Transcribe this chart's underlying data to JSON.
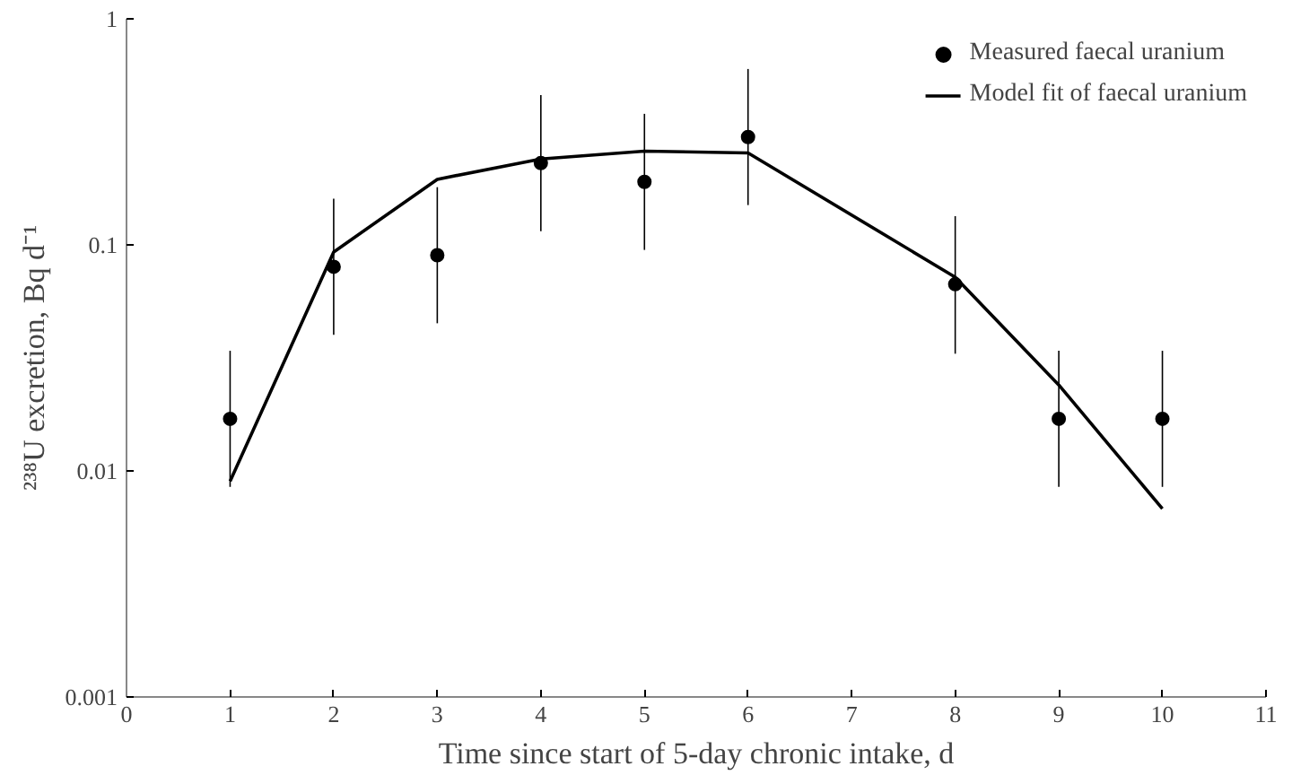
{
  "chart_data": {
    "type": "scatter",
    "xlabel": "Time since start of 5-day chronic intake, d",
    "ylabel": "²³⁸U excretion, Bq d⁻¹",
    "log": "y",
    "xlim": [
      0,
      11
    ],
    "ylim": [
      0.001,
      1
    ],
    "xticks": [
      0,
      1,
      2,
      3,
      4,
      5,
      6,
      7,
      8,
      9,
      10,
      11
    ],
    "yticks": [
      0.001,
      0.01,
      0.1,
      1
    ],
    "grid": false,
    "legend": "top right",
    "series": [
      {
        "name": "Measured faecal uranium",
        "marker": "circle",
        "color": "#000000",
        "x": [
          1,
          2,
          3,
          4,
          5,
          6,
          8,
          9,
          10
        ],
        "values": [
          0.017,
          0.08,
          0.09,
          0.23,
          0.19,
          0.3,
          0.067,
          0.017,
          0.017
        ],
        "errors": [
          [
            0.0085,
            0.034
          ],
          [
            0.04,
            0.16
          ],
          [
            0.045,
            0.18
          ],
          [
            0.115,
            0.46
          ],
          [
            0.095,
            0.38
          ],
          [
            0.15,
            0.6
          ],
          [
            0.033,
            0.134
          ],
          [
            0.0085,
            0.034
          ],
          [
            0.0085,
            0.034
          ]
        ]
      },
      {
        "name": "Model fit of faecal uranium",
        "type": "line",
        "line_style": "solid",
        "color": "#000000",
        "x": [
          1,
          2,
          3,
          4,
          5,
          6,
          8,
          9,
          10
        ],
        "values": [
          0.009,
          0.093,
          0.195,
          0.24,
          0.26,
          0.255,
          0.072,
          0.024,
          0.0068
        ]
      }
    ]
  }
}
